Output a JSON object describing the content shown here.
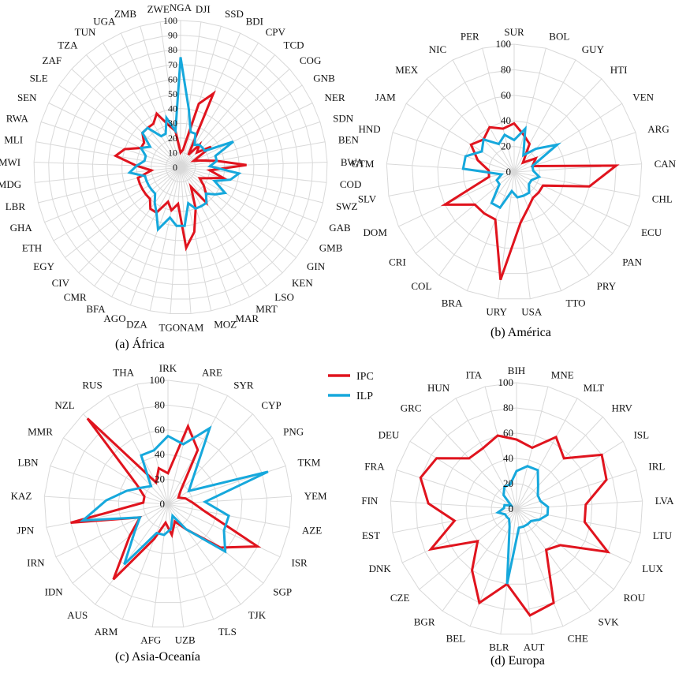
{
  "colors": {
    "IPC": "#e0141e",
    "ILP": "#16a8dc",
    "grid": "#d9d9d9"
  },
  "legend": {
    "items": [
      "IPC",
      "ILP"
    ]
  },
  "chart_data": [
    {
      "type": "radar",
      "caption": "(a) África",
      "rlim": [
        0,
        100
      ],
      "rticks": [
        "0",
        "10",
        "20",
        "30",
        "40",
        "50",
        "60",
        "70",
        "80",
        "90",
        "100"
      ],
      "categories": [
        "NGA",
        "DJI",
        "SSD",
        "BDI",
        "CPV",
        "TCD",
        "COG",
        "GNB",
        "NER",
        "SDN",
        "BEN",
        "BWA",
        "COD",
        "SWZ",
        "GAB",
        "GMB",
        "GIN",
        "KEN",
        "LSO",
        "MRT",
        "MAR",
        "MOZ",
        "NAM",
        "TGO",
        "DZA",
        "AGO",
        "BFA",
        "CMR",
        "CIV",
        "EGY",
        "ETH",
        "GHA",
        "LBR",
        "MDG",
        "MWI",
        "MLI",
        "RWA",
        "SEN",
        "SLE",
        "ZAF",
        "TZA",
        "TUN",
        "UGA",
        "ZMB",
        "ZWE"
      ],
      "series": [
        {
          "name": "IPC",
          "values": [
            10,
            12,
            45,
            55,
            10,
            20,
            15,
            25,
            10,
            15,
            25,
            45,
            20,
            30,
            20,
            15,
            20,
            25,
            30,
            15,
            30,
            45,
            55,
            25,
            30,
            25,
            35,
            35,
            30,
            30,
            30,
            30,
            30,
            20,
            30,
            45,
            40,
            30,
            30,
            35,
            35,
            35,
            40,
            30,
            25
          ]
        },
        {
          "name": "ILP",
          "values": [
            75,
            40,
            25,
            25,
            18,
            20,
            20,
            20,
            40,
            25,
            25,
            20,
            40,
            35,
            25,
            35,
            30,
            25,
            30,
            30,
            30,
            25,
            40,
            40,
            35,
            45,
            35,
            30,
            25,
            25,
            25,
            25,
            25,
            35,
            30,
            25,
            25,
            30,
            25,
            35,
            35,
            25,
            25,
            35,
            25
          ]
        }
      ]
    },
    {
      "type": "radar",
      "caption": "(b) América",
      "rlim": [
        0,
        100
      ],
      "rticks": [
        "0",
        "20",
        "40",
        "60",
        "80",
        "100"
      ],
      "categories": [
        "SUR",
        "BOL",
        "GUY",
        "HTI",
        "VEN",
        "ARG",
        "CAN",
        "CHL",
        "ECU",
        "PAN",
        "PRY",
        "TTO",
        "USA",
        "URY",
        "BRA",
        "COL",
        "CRI",
        "DOM",
        "SLV",
        "GTM",
        "HND",
        "JAM",
        "MEX",
        "NIC",
        "PER"
      ],
      "series": [
        {
          "name": "IPC",
          "values": [
            38,
            30,
            25,
            10,
            20,
            15,
            80,
            60,
            25,
            25,
            25,
            30,
            40,
            85,
            40,
            40,
            40,
            60,
            20,
            20,
            30,
            40,
            35,
            40,
            35
          ]
        },
        {
          "name": "ILP",
          "values": [
            25,
            35,
            15,
            25,
            40,
            15,
            15,
            20,
            15,
            15,
            20,
            20,
            20,
            15,
            30,
            30,
            15,
            15,
            10,
            40,
            40,
            30,
            35,
            25,
            30
          ]
        }
      ]
    },
    {
      "type": "radar",
      "caption": "(c) Asia-Oceanía",
      "rlim": [
        0,
        100
      ],
      "rticks": [
        "0",
        "20",
        "40",
        "60",
        "80",
        "100"
      ],
      "categories": [
        "IRK",
        "ARE",
        "SYR",
        "CYP",
        "PNG",
        "TKM",
        "YEM",
        "AZE",
        "ISR",
        "SGP",
        "TJK",
        "TLS",
        "UZB",
        "AFG",
        "ARM",
        "AUS",
        "IDN",
        "IRN",
        "JPN",
        "KAZ",
        "LBN",
        "MMR",
        "NZL",
        "RUS",
        "THA"
      ],
      "series": [
        {
          "name": "IPC",
          "values": [
            25,
            65,
            50,
            15,
            10,
            15,
            20,
            30,
            80,
            55,
            25,
            15,
            25,
            15,
            30,
            75,
            40,
            25,
            80,
            20,
            20,
            30,
            95,
            20,
            30
          ]
        },
        {
          "name": "ILP",
          "values": [
            55,
            50,
            70,
            30,
            20,
            85,
            30,
            50,
            50,
            60,
            25,
            10,
            20,
            25,
            25,
            60,
            35,
            25,
            70,
            50,
            35,
            25,
            20,
            45,
            45
          ]
        }
      ]
    },
    {
      "type": "radar",
      "caption": "(d) Europa",
      "rlim": [
        0,
        100
      ],
      "rticks": [
        "0",
        "20",
        "40",
        "60",
        "80",
        "100"
      ],
      "categories": [
        "BIH",
        "MNE",
        "MLT",
        "HRV",
        "ISL",
        "IRL",
        "LVA",
        "LTU",
        "LUX",
        "ROU",
        "SVK",
        "CHE",
        "AUT",
        "BLR",
        "BEL",
        "BGR",
        "CZE",
        "DNK",
        "EST",
        "FIN",
        "FRA",
        "DEU",
        "GRC",
        "HUN",
        "ITA"
      ],
      "series": [
        {
          "name": "IPC",
          "values": [
            55,
            50,
            65,
            55,
            80,
            75,
            55,
            55,
            80,
            45,
            40,
            80,
            85,
            60,
            80,
            60,
            40,
            75,
            50,
            70,
            80,
            75,
            55,
            55,
            60
          ]
        },
        {
          "name": "ILP",
          "values": [
            30,
            35,
            35,
            25,
            20,
            20,
            25,
            25,
            20,
            15,
            15,
            15,
            15,
            60,
            15,
            10,
            10,
            10,
            15,
            10,
            10,
            5,
            15,
            20,
            20
          ]
        }
      ]
    }
  ]
}
